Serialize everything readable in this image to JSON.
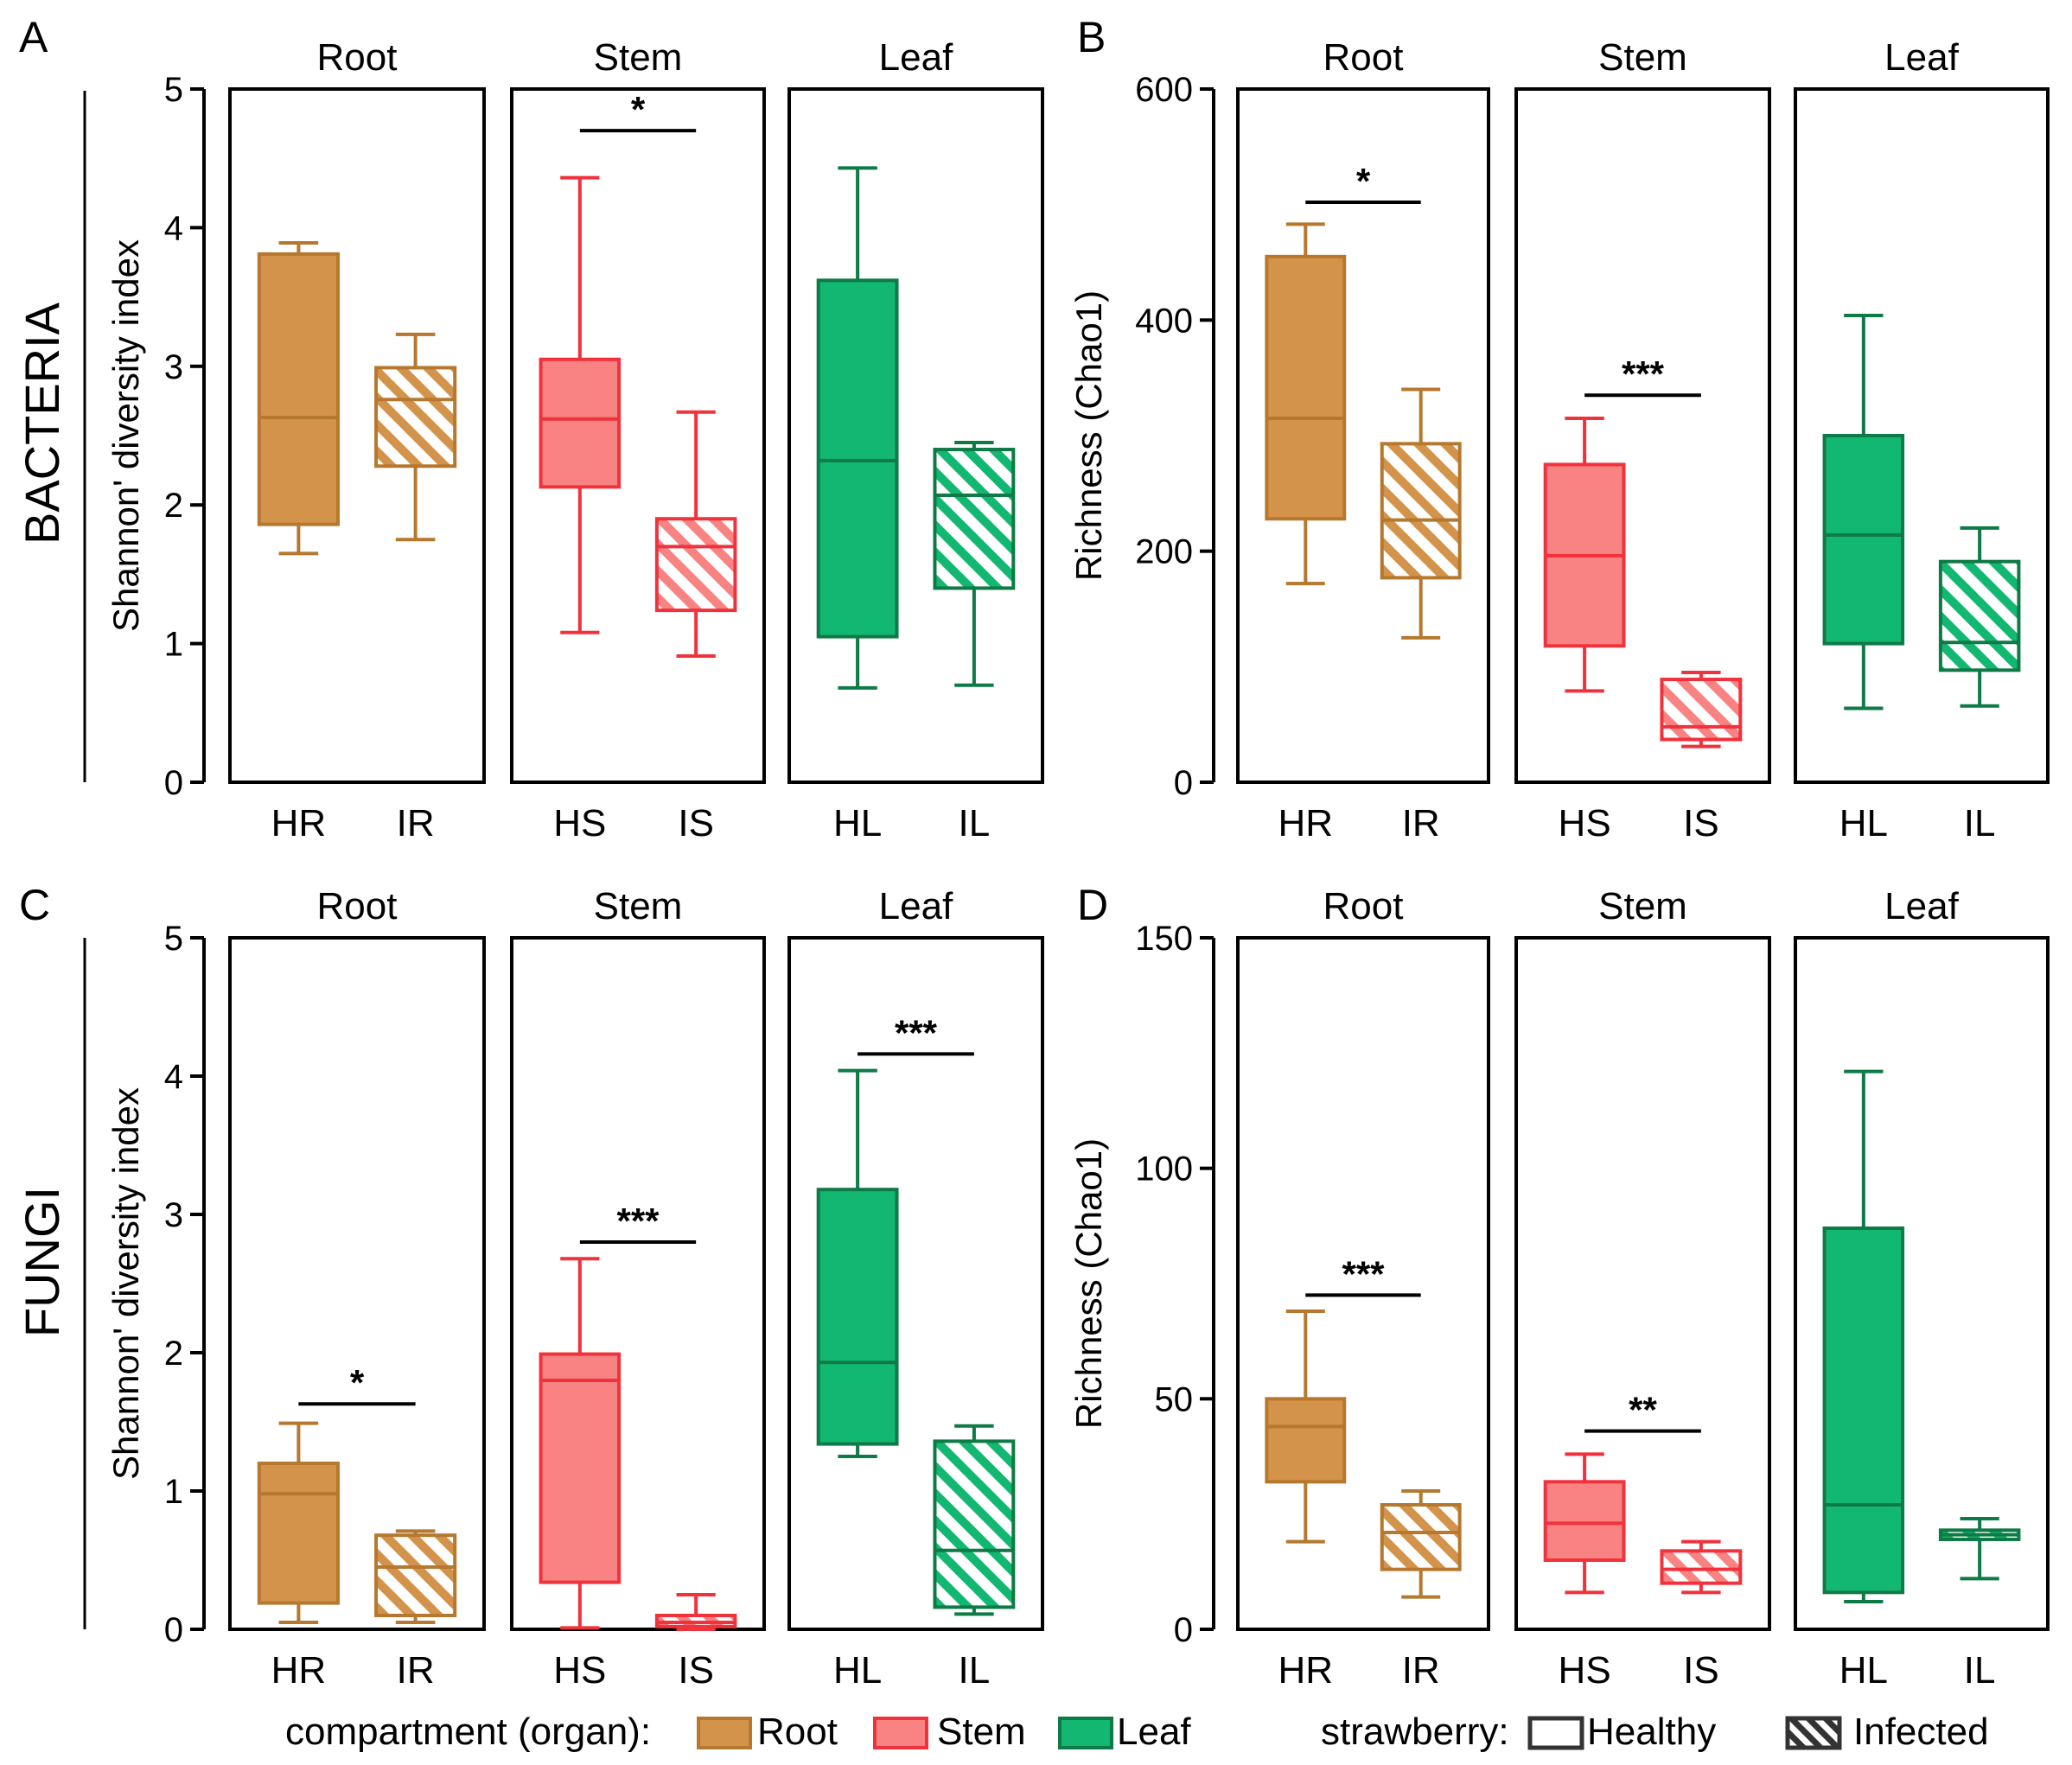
{
  "colors": {
    "root_fill": "#D4934A",
    "root_line": "#B5782E",
    "stem_fill": "#F98282",
    "stem_line": "#F0323C",
    "leaf_fill": "#12B872",
    "leaf_line": "#0E7A45"
  },
  "legend": {
    "compartment_title": "compartment (organ):",
    "compartments": [
      "Root",
      "Stem",
      "Leaf"
    ],
    "strawberry_title": "strawberry:",
    "states": [
      "Healthy",
      "Infected"
    ]
  },
  "chart_data": [
    {
      "panel": "A",
      "type": "box",
      "row_label": "BACTERIA",
      "ylabel": "Shannon' diversity index",
      "ylim": [
        0,
        5
      ],
      "yticks": [
        0,
        1,
        2,
        3,
        4,
        5
      ],
      "groups": [
        {
          "title": "Root",
          "organ": "root",
          "categories": [
            "HR",
            "IR"
          ],
          "boxes": [
            {
              "label": "HR",
              "infected": false,
              "min": 1.65,
              "q1": 1.86,
              "median": 2.63,
              "q3": 3.81,
              "max": 3.89
            },
            {
              "label": "IR",
              "infected": true,
              "min": 1.75,
              "q1": 2.28,
              "median": 2.76,
              "q3": 2.99,
              "max": 3.23
            }
          ]
        },
        {
          "title": "Stem",
          "organ": "stem",
          "categories": [
            "HS",
            "IS"
          ],
          "significance": "*",
          "sig_value": 4.7,
          "boxes": [
            {
              "label": "HS",
              "infected": false,
              "min": 1.08,
              "q1": 2.13,
              "median": 2.62,
              "q3": 3.05,
              "max": 4.36
            },
            {
              "label": "IS",
              "infected": true,
              "min": 0.91,
              "q1": 1.24,
              "median": 1.7,
              "q3": 1.9,
              "max": 2.67
            }
          ]
        },
        {
          "title": "Leaf",
          "organ": "leaf",
          "categories": [
            "HL",
            "IL"
          ],
          "boxes": [
            {
              "label": "HL",
              "infected": false,
              "min": 0.68,
              "q1": 1.05,
              "median": 2.32,
              "q3": 3.62,
              "max": 4.43
            },
            {
              "label": "IL",
              "infected": true,
              "min": 0.7,
              "q1": 1.4,
              "median": 2.07,
              "q3": 2.4,
              "max": 2.45
            }
          ]
        }
      ]
    },
    {
      "panel": "B",
      "type": "box",
      "row_label": "",
      "ylabel": "Richness (Chao1)",
      "ylim": [
        0,
        600
      ],
      "yticks": [
        0,
        200,
        400,
        600
      ],
      "groups": [
        {
          "title": "Root",
          "organ": "root",
          "categories": [
            "HR",
            "IR"
          ],
          "significance": "*",
          "sig_value": 502,
          "boxes": [
            {
              "label": "HR",
              "infected": false,
              "min": 172,
              "q1": 228,
              "median": 315,
              "q3": 455,
              "max": 483
            },
            {
              "label": "IR",
              "infected": true,
              "min": 125,
              "q1": 177,
              "median": 227,
              "q3": 293,
              "max": 340
            }
          ]
        },
        {
          "title": "Stem",
          "organ": "stem",
          "categories": [
            "HS",
            "IS"
          ],
          "significance": "***",
          "sig_value": 335,
          "boxes": [
            {
              "label": "HS",
              "infected": false,
              "min": 79,
              "q1": 118,
              "median": 196,
              "q3": 275,
              "max": 315
            },
            {
              "label": "IS",
              "infected": true,
              "min": 31,
              "q1": 37,
              "median": 48,
              "q3": 89,
              "max": 95
            }
          ]
        },
        {
          "title": "Leaf",
          "organ": "leaf",
          "categories": [
            "HL",
            "IL"
          ],
          "boxes": [
            {
              "label": "HL",
              "infected": false,
              "min": 64,
              "q1": 120,
              "median": 214,
              "q3": 300,
              "max": 404
            },
            {
              "label": "IL",
              "infected": true,
              "min": 66,
              "q1": 97,
              "median": 121,
              "q3": 191,
              "max": 220
            }
          ]
        }
      ]
    },
    {
      "panel": "C",
      "type": "box",
      "row_label": "FUNGI",
      "ylabel": "Shannon' diversity index",
      "ylim": [
        0,
        5
      ],
      "yticks": [
        0,
        1,
        2,
        3,
        4,
        5
      ],
      "groups": [
        {
          "title": "Root",
          "organ": "root",
          "categories": [
            "HR",
            "IR"
          ],
          "significance": "*",
          "sig_value": 1.63,
          "boxes": [
            {
              "label": "HR",
              "infected": false,
              "min": 0.05,
              "q1": 0.19,
              "median": 0.98,
              "q3": 1.2,
              "max": 1.49
            },
            {
              "label": "IR",
              "infected": true,
              "min": 0.05,
              "q1": 0.1,
              "median": 0.45,
              "q3": 0.68,
              "max": 0.71
            }
          ]
        },
        {
          "title": "Stem",
          "organ": "stem",
          "categories": [
            "HS",
            "IS"
          ],
          "significance": "***",
          "sig_value": 2.8,
          "boxes": [
            {
              "label": "HS",
              "infected": false,
              "min": 0.01,
              "q1": 0.34,
              "median": 1.8,
              "q3": 1.99,
              "max": 2.68
            },
            {
              "label": "IS",
              "infected": true,
              "min": 0.0,
              "q1": 0.02,
              "median": 0.05,
              "q3": 0.1,
              "max": 0.25
            }
          ]
        },
        {
          "title": "Leaf",
          "organ": "leaf",
          "categories": [
            "HL",
            "IL"
          ],
          "significance": "***",
          "sig_value": 4.16,
          "boxes": [
            {
              "label": "HL",
              "infected": false,
              "min": 1.25,
              "q1": 1.34,
              "median": 1.93,
              "q3": 3.18,
              "max": 4.04
            },
            {
              "label": "IL",
              "infected": true,
              "min": 0.11,
              "q1": 0.16,
              "median": 0.57,
              "q3": 1.36,
              "max": 1.47
            }
          ]
        }
      ]
    },
    {
      "panel": "D",
      "type": "box",
      "row_label": "",
      "ylabel": "Richness (Chao1)",
      "ylim": [
        0,
        150
      ],
      "yticks": [
        0,
        50,
        100,
        150
      ],
      "groups": [
        {
          "title": "Root",
          "organ": "root",
          "categories": [
            "HR",
            "IR"
          ],
          "significance": "***",
          "sig_value": 72.5,
          "boxes": [
            {
              "label": "HR",
              "infected": false,
              "min": 19,
              "q1": 32,
              "median": 44,
              "q3": 50,
              "max": 69
            },
            {
              "label": "IR",
              "infected": true,
              "min": 7,
              "q1": 13,
              "median": 21,
              "q3": 27,
              "max": 30
            }
          ]
        },
        {
          "title": "Stem",
          "organ": "stem",
          "categories": [
            "HS",
            "IS"
          ],
          "significance": "**",
          "sig_value": 43,
          "boxes": [
            {
              "label": "HS",
              "infected": false,
              "min": 8,
              "q1": 15,
              "median": 23,
              "q3": 32,
              "max": 38
            },
            {
              "label": "IS",
              "infected": true,
              "min": 8,
              "q1": 10,
              "median": 13,
              "q3": 17,
              "max": 19
            }
          ]
        },
        {
          "title": "Leaf",
          "organ": "leaf",
          "categories": [
            "HL",
            "IL"
          ],
          "boxes": [
            {
              "label": "HL",
              "infected": false,
              "min": 6,
              "q1": 8,
              "median": 27,
              "q3": 87,
              "max": 121
            },
            {
              "label": "IL",
              "infected": true,
              "min": 11,
              "q1": 19.5,
              "median": 20.5,
              "q3": 21.5,
              "max": 24
            }
          ]
        }
      ]
    }
  ]
}
